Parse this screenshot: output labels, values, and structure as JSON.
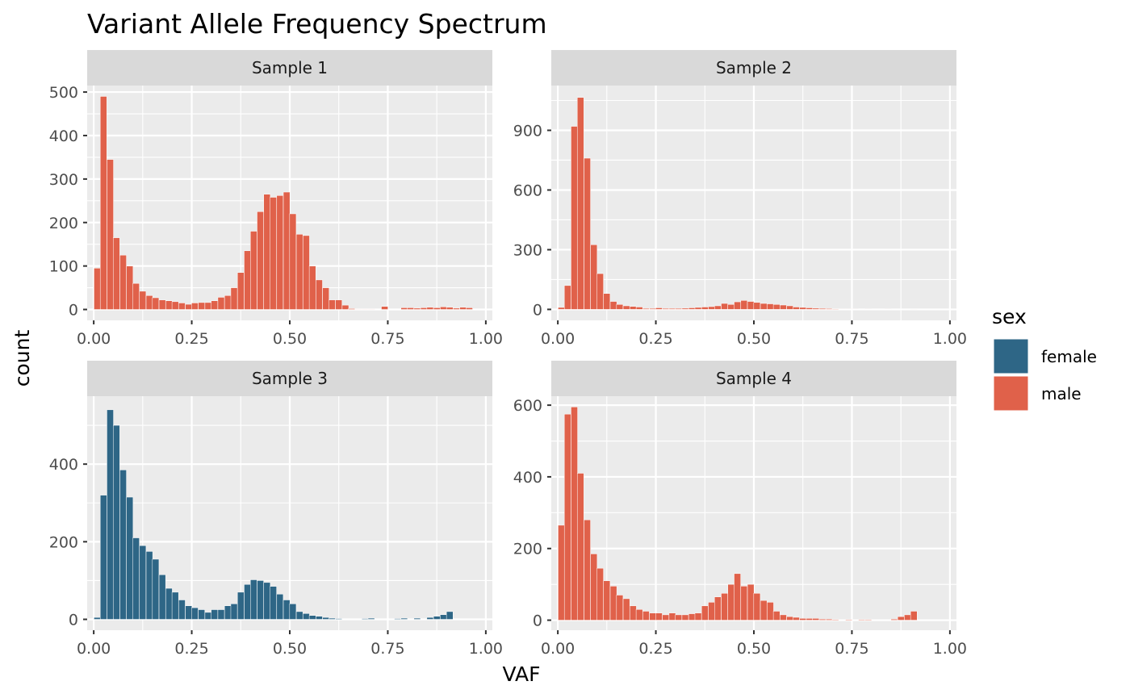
{
  "chart_data": {
    "type": "bar",
    "title": "Variant Allele Frequency Spectrum",
    "xlabel": "VAF",
    "ylabel": "count",
    "grid": true,
    "legend_position": "right",
    "legend": {
      "title": "sex",
      "entries": [
        {
          "name": "female",
          "color": "#2E6686"
        },
        {
          "name": "male",
          "color": "#E0614A"
        }
      ]
    },
    "x_ticks": [
      "0.00",
      "0.25",
      "0.50",
      "0.75",
      "1.00"
    ],
    "xlim": [
      -0.0167,
      1.0167
    ],
    "bin_width": 0.0167,
    "panels": [
      {
        "label": "Sample 1",
        "sex": "male",
        "ylim": [
          -25,
          515
        ],
        "y_ticks": [
          0,
          100,
          200,
          300,
          400,
          500
        ],
        "bins": [
          {
            "x": 0.009,
            "count": 95
          },
          {
            "x": 0.025,
            "count": 490
          },
          {
            "x": 0.042,
            "count": 345
          },
          {
            "x": 0.058,
            "count": 165
          },
          {
            "x": 0.075,
            "count": 125
          },
          {
            "x": 0.092,
            "count": 100
          },
          {
            "x": 0.108,
            "count": 60
          },
          {
            "x": 0.125,
            "count": 42
          },
          {
            "x": 0.142,
            "count": 32
          },
          {
            "x": 0.158,
            "count": 27
          },
          {
            "x": 0.175,
            "count": 22
          },
          {
            "x": 0.192,
            "count": 20
          },
          {
            "x": 0.208,
            "count": 18
          },
          {
            "x": 0.225,
            "count": 15
          },
          {
            "x": 0.242,
            "count": 12
          },
          {
            "x": 0.258,
            "count": 15
          },
          {
            "x": 0.275,
            "count": 16
          },
          {
            "x": 0.292,
            "count": 16
          },
          {
            "x": 0.308,
            "count": 20
          },
          {
            "x": 0.325,
            "count": 28
          },
          {
            "x": 0.342,
            "count": 32
          },
          {
            "x": 0.358,
            "count": 50
          },
          {
            "x": 0.375,
            "count": 85
          },
          {
            "x": 0.392,
            "count": 135
          },
          {
            "x": 0.408,
            "count": 180
          },
          {
            "x": 0.425,
            "count": 225
          },
          {
            "x": 0.442,
            "count": 265
          },
          {
            "x": 0.458,
            "count": 258
          },
          {
            "x": 0.475,
            "count": 262
          },
          {
            "x": 0.492,
            "count": 270
          },
          {
            "x": 0.508,
            "count": 220
          },
          {
            "x": 0.525,
            "count": 173
          },
          {
            "x": 0.542,
            "count": 170
          },
          {
            "x": 0.558,
            "count": 100
          },
          {
            "x": 0.575,
            "count": 68
          },
          {
            "x": 0.592,
            "count": 50
          },
          {
            "x": 0.608,
            "count": 22
          },
          {
            "x": 0.625,
            "count": 22
          },
          {
            "x": 0.642,
            "count": 10
          },
          {
            "x": 0.658,
            "count": 2
          },
          {
            "x": 0.675,
            "count": 1
          },
          {
            "x": 0.692,
            "count": 1
          },
          {
            "x": 0.708,
            "count": 1
          },
          {
            "x": 0.742,
            "count": 7
          },
          {
            "x": 0.792,
            "count": 4
          },
          {
            "x": 0.808,
            "count": 4
          },
          {
            "x": 0.825,
            "count": 3
          },
          {
            "x": 0.842,
            "count": 4
          },
          {
            "x": 0.858,
            "count": 5
          },
          {
            "x": 0.875,
            "count": 4
          },
          {
            "x": 0.892,
            "count": 6
          },
          {
            "x": 0.908,
            "count": 5
          },
          {
            "x": 0.925,
            "count": 3
          },
          {
            "x": 0.942,
            "count": 5
          },
          {
            "x": 0.958,
            "count": 4
          }
        ]
      },
      {
        "label": "Sample 2",
        "sex": "male",
        "ylim": [
          -55,
          1125
        ],
        "y_ticks": [
          0,
          300,
          600,
          900
        ],
        "bins": [
          {
            "x": 0.009,
            "count": 10
          },
          {
            "x": 0.025,
            "count": 120
          },
          {
            "x": 0.042,
            "count": 920
          },
          {
            "x": 0.058,
            "count": 1065
          },
          {
            "x": 0.075,
            "count": 760
          },
          {
            "x": 0.092,
            "count": 325
          },
          {
            "x": 0.108,
            "count": 180
          },
          {
            "x": 0.125,
            "count": 80
          },
          {
            "x": 0.142,
            "count": 40
          },
          {
            "x": 0.158,
            "count": 25
          },
          {
            "x": 0.175,
            "count": 18
          },
          {
            "x": 0.192,
            "count": 15
          },
          {
            "x": 0.208,
            "count": 12
          },
          {
            "x": 0.225,
            "count": 5
          },
          {
            "x": 0.242,
            "count": 5
          },
          {
            "x": 0.258,
            "count": 8
          },
          {
            "x": 0.275,
            "count": 5
          },
          {
            "x": 0.292,
            "count": 5
          },
          {
            "x": 0.308,
            "count": 5
          },
          {
            "x": 0.325,
            "count": 6
          },
          {
            "x": 0.342,
            "count": 8
          },
          {
            "x": 0.358,
            "count": 10
          },
          {
            "x": 0.375,
            "count": 12
          },
          {
            "x": 0.392,
            "count": 14
          },
          {
            "x": 0.408,
            "count": 18
          },
          {
            "x": 0.425,
            "count": 30
          },
          {
            "x": 0.442,
            "count": 25
          },
          {
            "x": 0.458,
            "count": 38
          },
          {
            "x": 0.475,
            "count": 45
          },
          {
            "x": 0.492,
            "count": 40
          },
          {
            "x": 0.508,
            "count": 35
          },
          {
            "x": 0.525,
            "count": 30
          },
          {
            "x": 0.542,
            "count": 28
          },
          {
            "x": 0.558,
            "count": 25
          },
          {
            "x": 0.575,
            "count": 22
          },
          {
            "x": 0.592,
            "count": 18
          },
          {
            "x": 0.608,
            "count": 12
          },
          {
            "x": 0.625,
            "count": 10
          },
          {
            "x": 0.642,
            "count": 8
          },
          {
            "x": 0.658,
            "count": 6
          },
          {
            "x": 0.675,
            "count": 5
          },
          {
            "x": 0.692,
            "count": 4
          },
          {
            "x": 0.708,
            "count": 3
          },
          {
            "x": 0.725,
            "count": 2
          },
          {
            "x": 0.742,
            "count": 2
          },
          {
            "x": 0.758,
            "count": 2
          },
          {
            "x": 0.792,
            "count": 2
          },
          {
            "x": 0.842,
            "count": 2
          },
          {
            "x": 0.908,
            "count": 1
          }
        ]
      },
      {
        "label": "Sample 3",
        "sex": "female",
        "ylim": [
          -28,
          575
        ],
        "y_ticks": [
          0,
          200,
          400
        ],
        "bins": [
          {
            "x": 0.009,
            "count": 5
          },
          {
            "x": 0.025,
            "count": 320
          },
          {
            "x": 0.042,
            "count": 540
          },
          {
            "x": 0.058,
            "count": 500
          },
          {
            "x": 0.075,
            "count": 385
          },
          {
            "x": 0.092,
            "count": 315
          },
          {
            "x": 0.108,
            "count": 210
          },
          {
            "x": 0.125,
            "count": 190
          },
          {
            "x": 0.142,
            "count": 175
          },
          {
            "x": 0.158,
            "count": 155
          },
          {
            "x": 0.175,
            "count": 115
          },
          {
            "x": 0.192,
            "count": 80
          },
          {
            "x": 0.208,
            "count": 70
          },
          {
            "x": 0.225,
            "count": 50
          },
          {
            "x": 0.242,
            "count": 35
          },
          {
            "x": 0.258,
            "count": 30
          },
          {
            "x": 0.275,
            "count": 25
          },
          {
            "x": 0.292,
            "count": 18
          },
          {
            "x": 0.308,
            "count": 25
          },
          {
            "x": 0.325,
            "count": 25
          },
          {
            "x": 0.342,
            "count": 35
          },
          {
            "x": 0.358,
            "count": 40
          },
          {
            "x": 0.375,
            "count": 70
          },
          {
            "x": 0.392,
            "count": 90
          },
          {
            "x": 0.408,
            "count": 102
          },
          {
            "x": 0.425,
            "count": 100
          },
          {
            "x": 0.442,
            "count": 95
          },
          {
            "x": 0.458,
            "count": 85
          },
          {
            "x": 0.475,
            "count": 65
          },
          {
            "x": 0.492,
            "count": 50
          },
          {
            "x": 0.508,
            "count": 40
          },
          {
            "x": 0.525,
            "count": 20
          },
          {
            "x": 0.542,
            "count": 15
          },
          {
            "x": 0.558,
            "count": 10
          },
          {
            "x": 0.575,
            "count": 8
          },
          {
            "x": 0.592,
            "count": 5
          },
          {
            "x": 0.608,
            "count": 3
          },
          {
            "x": 0.625,
            "count": 2
          },
          {
            "x": 0.692,
            "count": 2
          },
          {
            "x": 0.708,
            "count": 3
          },
          {
            "x": 0.775,
            "count": 2
          },
          {
            "x": 0.792,
            "count": 3
          },
          {
            "x": 0.825,
            "count": 3
          },
          {
            "x": 0.858,
            "count": 5
          },
          {
            "x": 0.875,
            "count": 8
          },
          {
            "x": 0.892,
            "count": 12
          },
          {
            "x": 0.908,
            "count": 20
          }
        ]
      },
      {
        "label": "Sample 4",
        "sex": "male",
        "ylim": [
          -28,
          625
        ],
        "y_ticks": [
          0,
          200,
          400,
          600
        ],
        "bins": [
          {
            "x": 0.009,
            "count": 265
          },
          {
            "x": 0.025,
            "count": 575
          },
          {
            "x": 0.042,
            "count": 595
          },
          {
            "x": 0.058,
            "count": 410
          },
          {
            "x": 0.075,
            "count": 280
          },
          {
            "x": 0.092,
            "count": 185
          },
          {
            "x": 0.108,
            "count": 145
          },
          {
            "x": 0.125,
            "count": 110
          },
          {
            "x": 0.142,
            "count": 95
          },
          {
            "x": 0.158,
            "count": 70
          },
          {
            "x": 0.175,
            "count": 60
          },
          {
            "x": 0.192,
            "count": 40
          },
          {
            "x": 0.208,
            "count": 30
          },
          {
            "x": 0.225,
            "count": 25
          },
          {
            "x": 0.242,
            "count": 20
          },
          {
            "x": 0.258,
            "count": 20
          },
          {
            "x": 0.275,
            "count": 15
          },
          {
            "x": 0.292,
            "count": 20
          },
          {
            "x": 0.308,
            "count": 15
          },
          {
            "x": 0.325,
            "count": 15
          },
          {
            "x": 0.342,
            "count": 18
          },
          {
            "x": 0.358,
            "count": 20
          },
          {
            "x": 0.375,
            "count": 40
          },
          {
            "x": 0.392,
            "count": 50
          },
          {
            "x": 0.408,
            "count": 65
          },
          {
            "x": 0.425,
            "count": 75
          },
          {
            "x": 0.442,
            "count": 100
          },
          {
            "x": 0.458,
            "count": 130
          },
          {
            "x": 0.475,
            "count": 95
          },
          {
            "x": 0.492,
            "count": 100
          },
          {
            "x": 0.508,
            "count": 75
          },
          {
            "x": 0.525,
            "count": 55
          },
          {
            "x": 0.542,
            "count": 50
          },
          {
            "x": 0.558,
            "count": 25
          },
          {
            "x": 0.575,
            "count": 15
          },
          {
            "x": 0.592,
            "count": 10
          },
          {
            "x": 0.608,
            "count": 8
          },
          {
            "x": 0.625,
            "count": 5
          },
          {
            "x": 0.642,
            "count": 5
          },
          {
            "x": 0.658,
            "count": 5
          },
          {
            "x": 0.675,
            "count": 3
          },
          {
            "x": 0.692,
            "count": 3
          },
          {
            "x": 0.708,
            "count": 2
          },
          {
            "x": 0.742,
            "count": 2
          },
          {
            "x": 0.775,
            "count": 2
          },
          {
            "x": 0.792,
            "count": 2
          },
          {
            "x": 0.858,
            "count": 3
          },
          {
            "x": 0.875,
            "count": 10
          },
          {
            "x": 0.892,
            "count": 15
          },
          {
            "x": 0.908,
            "count": 25
          }
        ]
      }
    ]
  }
}
